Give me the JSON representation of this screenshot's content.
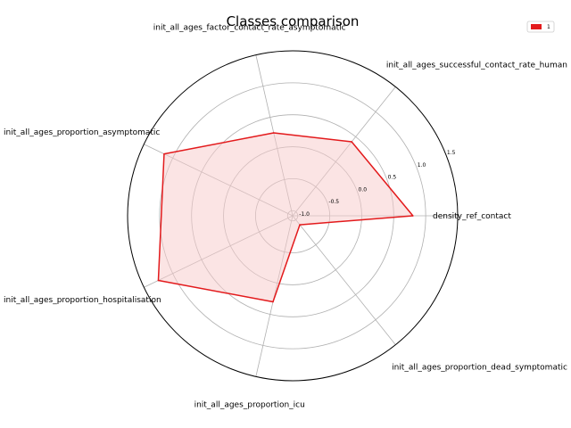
{
  "chart_data": {
    "type": "radar",
    "title": "Classes comparison",
    "axes": [
      "density_ref_contact",
      "init_all_ages_successful_contact_rate_human",
      "init_all_ages_factor_contact_rate_asymptomatic",
      "init_all_ages_proportion_asymptomatic",
      "init_all_ages_proportion_hospitalisation",
      "init_all_ages_proportion_icu",
      "init_all_ages_proportion_dead_symptomatic"
    ],
    "rticks": [
      -1.0,
      -0.5,
      0.0,
      0.5,
      1.0,
      1.5
    ],
    "rtick_labels": [
      "-1.0",
      "-0.5",
      "0.0",
      "0.5",
      "1.0",
      "1.5"
    ],
    "rlim": [
      -1.08,
      1.5
    ],
    "series": [
      {
        "name": "1",
        "values": [
          0.8,
          0.4,
          0.25,
          1.15,
          1.25,
          0.3,
          -0.9
        ],
        "color": "#e31a1c",
        "fill": "#f7c9c9"
      }
    ],
    "legend_position": "top-right",
    "grid": true
  }
}
